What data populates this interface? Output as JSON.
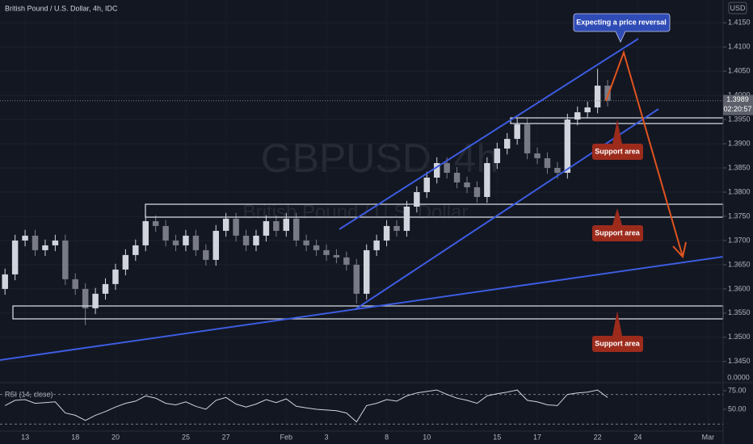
{
  "chart_data": {
    "type": "candlestick",
    "title": "British Pound / U.S. Dollar, 4h, IDC",
    "watermark": "GBPUSD, 4h",
    "watermark_subtitle": "British Pound / U.S. Dollar",
    "currency": "USD",
    "price_label": "1.3989",
    "countdown": "02:20:57",
    "separator_label": "0.0000",
    "up_color": "#d1d4dc",
    "down_color": "#787b86",
    "annotations": {
      "reversal": "Expecting a price reversal",
      "support": [
        "Support area",
        "Support area",
        "Support area"
      ]
    },
    "categories": [
      null,
      null,
      "13",
      null,
      null,
      null,
      null,
      "18",
      null,
      null,
      null,
      "20",
      null,
      null,
      null,
      null,
      null,
      null,
      "25",
      null,
      null,
      null,
      "27",
      null,
      null,
      null,
      null,
      null,
      "Feb",
      null,
      null,
      null,
      "3",
      null,
      null,
      null,
      null,
      null,
      "8",
      null,
      null,
      null,
      "10",
      null,
      null,
      null,
      null,
      null,
      null,
      "15",
      null,
      null,
      null,
      "17",
      null,
      null,
      null,
      null,
      null,
      "22",
      null,
      null,
      null,
      "24",
      null,
      null,
      null,
      null,
      null,
      null,
      "Mar",
      null
    ],
    "open": [
      1.36,
      1.363,
      1.37,
      1.371,
      1.368,
      1.369,
      1.37,
      1.362,
      1.36,
      1.356,
      1.359,
      1.361,
      1.364,
      1.367,
      1.369,
      1.374,
      1.373,
      1.37,
      1.369,
      1.371,
      1.368,
      1.366,
      1.372,
      1.3745,
      1.371,
      1.369,
      1.371,
      1.374,
      1.372,
      1.3745,
      1.37,
      1.369,
      1.368,
      1.367,
      1.3665,
      1.365,
      1.359,
      1.368,
      1.37,
      1.373,
      1.372,
      1.377,
      1.38,
      1.383,
      1.386,
      1.384,
      1.382,
      1.381,
      1.379,
      1.386,
      1.389,
      1.391,
      1.394,
      1.388,
      1.387,
      1.385,
      1.384,
      1.395,
      1.3965,
      1.3975,
      1.402,
      null,
      null,
      null,
      null,
      null,
      null,
      null,
      null,
      null,
      null,
      null
    ],
    "high": [
      1.3642,
      1.3712,
      1.3722,
      1.3722,
      1.3702,
      1.3712,
      1.3712,
      1.3632,
      1.3612,
      1.3602,
      1.3622,
      1.3652,
      1.3682,
      1.3702,
      1.3752,
      1.3752,
      1.3742,
      1.3712,
      1.3722,
      1.3722,
      1.3692,
      1.3732,
      1.3757,
      1.3757,
      1.3722,
      1.3722,
      1.3752,
      1.3752,
      1.3757,
      1.3757,
      1.3712,
      1.3702,
      1.3692,
      1.3682,
      1.3677,
      1.3662,
      1.3692,
      1.3712,
      1.3742,
      1.3742,
      1.3782,
      1.3812,
      1.3842,
      1.3872,
      1.3872,
      1.3852,
      1.3832,
      1.3822,
      1.3872,
      1.3902,
      1.3922,
      1.3952,
      1.3952,
      1.3892,
      1.3882,
      1.3862,
      1.3962,
      1.3977,
      1.3987,
      1.4055,
      1.4032,
      null,
      null,
      null,
      null,
      null,
      null,
      null,
      null,
      null,
      null,
      null
    ],
    "low": [
      1.3588,
      1.3618,
      1.3688,
      1.3668,
      1.3668,
      1.3678,
      1.3608,
      1.3588,
      1.3525,
      1.3548,
      1.3578,
      1.3598,
      1.3628,
      1.3658,
      1.3678,
      1.3718,
      1.3688,
      1.3678,
      1.3678,
      1.3668,
      1.3648,
      1.3648,
      1.3708,
      1.3698,
      1.3678,
      1.3678,
      1.3698,
      1.3708,
      1.3708,
      1.3688,
      1.3678,
      1.3668,
      1.3658,
      1.3653,
      1.3638,
      1.357,
      1.3578,
      1.3668,
      1.3688,
      1.3708,
      1.3708,
      1.3758,
      1.3788,
      1.3818,
      1.3828,
      1.3808,
      1.3798,
      1.3778,
      1.3778,
      1.3848,
      1.3878,
      1.3898,
      1.3868,
      1.3858,
      1.3838,
      1.3828,
      1.3828,
      1.3938,
      1.3953,
      1.3963,
      1.3977,
      null,
      null,
      null,
      null,
      null,
      null,
      null,
      null,
      null,
      null,
      null
    ],
    "close": [
      1.363,
      1.37,
      1.371,
      1.368,
      1.369,
      1.37,
      1.362,
      1.36,
      1.356,
      1.359,
      1.361,
      1.364,
      1.367,
      1.369,
      1.374,
      1.373,
      1.37,
      1.369,
      1.371,
      1.368,
      1.366,
      1.372,
      1.3745,
      1.371,
      1.369,
      1.371,
      1.374,
      1.372,
      1.3745,
      1.37,
      1.369,
      1.368,
      1.367,
      1.3665,
      1.365,
      1.359,
      1.368,
      1.37,
      1.373,
      1.372,
      1.377,
      1.38,
      1.383,
      1.386,
      1.384,
      1.382,
      1.381,
      1.379,
      1.386,
      1.389,
      1.391,
      1.394,
      1.388,
      1.387,
      1.385,
      1.384,
      1.395,
      1.3965,
      1.3975,
      1.402,
      1.3989,
      null,
      null,
      null,
      null,
      null,
      null,
      null,
      null,
      null,
      null,
      null
    ],
    "ylim": [
      1.3433,
      1.4197
    ],
    "yticks": [
      {
        "value": 1.345,
        "label": "1.3450"
      },
      {
        "value": 1.35,
        "label": "1.3500"
      },
      {
        "value": 1.355,
        "label": "1.3550"
      },
      {
        "value": 1.36,
        "label": "1.3600"
      },
      {
        "value": 1.365,
        "label": "1.3650"
      },
      {
        "value": 1.37,
        "label": "1.3700"
      },
      {
        "value": 1.375,
        "label": "1.3750"
      },
      {
        "value": 1.38,
        "label": "1.3800"
      },
      {
        "value": 1.385,
        "label": "1.3850"
      },
      {
        "value": 1.39,
        "label": "1.3900"
      },
      {
        "value": 1.395,
        "label": "1.3950"
      },
      {
        "value": 1.4,
        "label": "1.4000"
      },
      {
        "value": 1.405,
        "label": "1.4050"
      },
      {
        "value": 1.41,
        "label": "1.4100"
      },
      {
        "value": 1.415,
        "label": "1.4150"
      }
    ],
    "rsi": {
      "title": "RSI (14, close)",
      "color": "#d1d4dc",
      "values": [
        55,
        62,
        63,
        58,
        59,
        60,
        45,
        42,
        35,
        42,
        47,
        53,
        58,
        61,
        68,
        65,
        58,
        56,
        60,
        54,
        50,
        62,
        66,
        57,
        53,
        57,
        63,
        59,
        64,
        54,
        52,
        50,
        49,
        48,
        45,
        33,
        55,
        58,
        63,
        61,
        68,
        72,
        74,
        76,
        70,
        65,
        62,
        58,
        68,
        71,
        73,
        76,
        62,
        60,
        56,
        55,
        70,
        72,
        73,
        76,
        66,
        null,
        null,
        null,
        null,
        null,
        null,
        null,
        null,
        null,
        null,
        null
      ],
      "ylim": [
        25,
        81.5
      ],
      "yticks": [
        {
          "value": 75,
          "label": "75.00"
        },
        {
          "value": 50,
          "label": "50.00"
        }
      ],
      "bands": [
        30,
        70
      ]
    }
  }
}
